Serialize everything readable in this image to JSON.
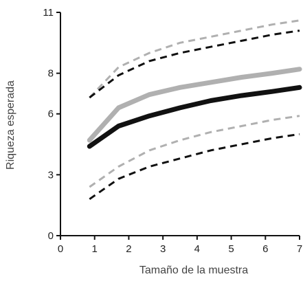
{
  "chart_data": {
    "type": "line",
    "title": "",
    "xlabel": "Tamaño de la muestra",
    "ylabel": "Riqueza esperada",
    "xlim": [
      0,
      7
    ],
    "ylim": [
      0,
      11
    ],
    "xticks": [
      "0",
      "1",
      "2",
      "3",
      "4",
      "5",
      "6",
      "7"
    ],
    "yticks": [
      "0",
      "3",
      "6",
      "8",
      "11"
    ],
    "grid": false,
    "x": [
      0.85,
      1.7,
      2.6,
      3.5,
      4.4,
      5.3,
      6.2,
      7.0
    ],
    "series": [
      {
        "style": "solid-gray",
        "color": "#b0b0b0",
        "values": [
          4.7,
          6.3,
          6.95,
          7.3,
          7.55,
          7.8,
          8.0,
          8.2
        ]
      },
      {
        "style": "solid-black",
        "color": "#111111",
        "values": [
          4.4,
          5.4,
          5.9,
          6.3,
          6.65,
          6.9,
          7.1,
          7.3
        ]
      },
      {
        "style": "dashed-gray",
        "color": "#b0b0b0",
        "values": [
          6.8,
          8.3,
          9.0,
          9.5,
          9.8,
          10.1,
          10.4,
          10.6
        ]
      },
      {
        "style": "dashed-black",
        "color": "#111111",
        "values": [
          6.8,
          7.9,
          8.6,
          9.0,
          9.3,
          9.6,
          9.9,
          10.1
        ]
      },
      {
        "style": "dashed-gray",
        "color": "#b0b0b0",
        "values": [
          2.4,
          3.4,
          4.2,
          4.7,
          5.1,
          5.4,
          5.7,
          5.9
        ]
      },
      {
        "style": "dashed-black",
        "color": "#111111",
        "values": [
          1.8,
          2.8,
          3.4,
          3.8,
          4.2,
          4.5,
          4.8,
          5.0
        ]
      }
    ]
  }
}
